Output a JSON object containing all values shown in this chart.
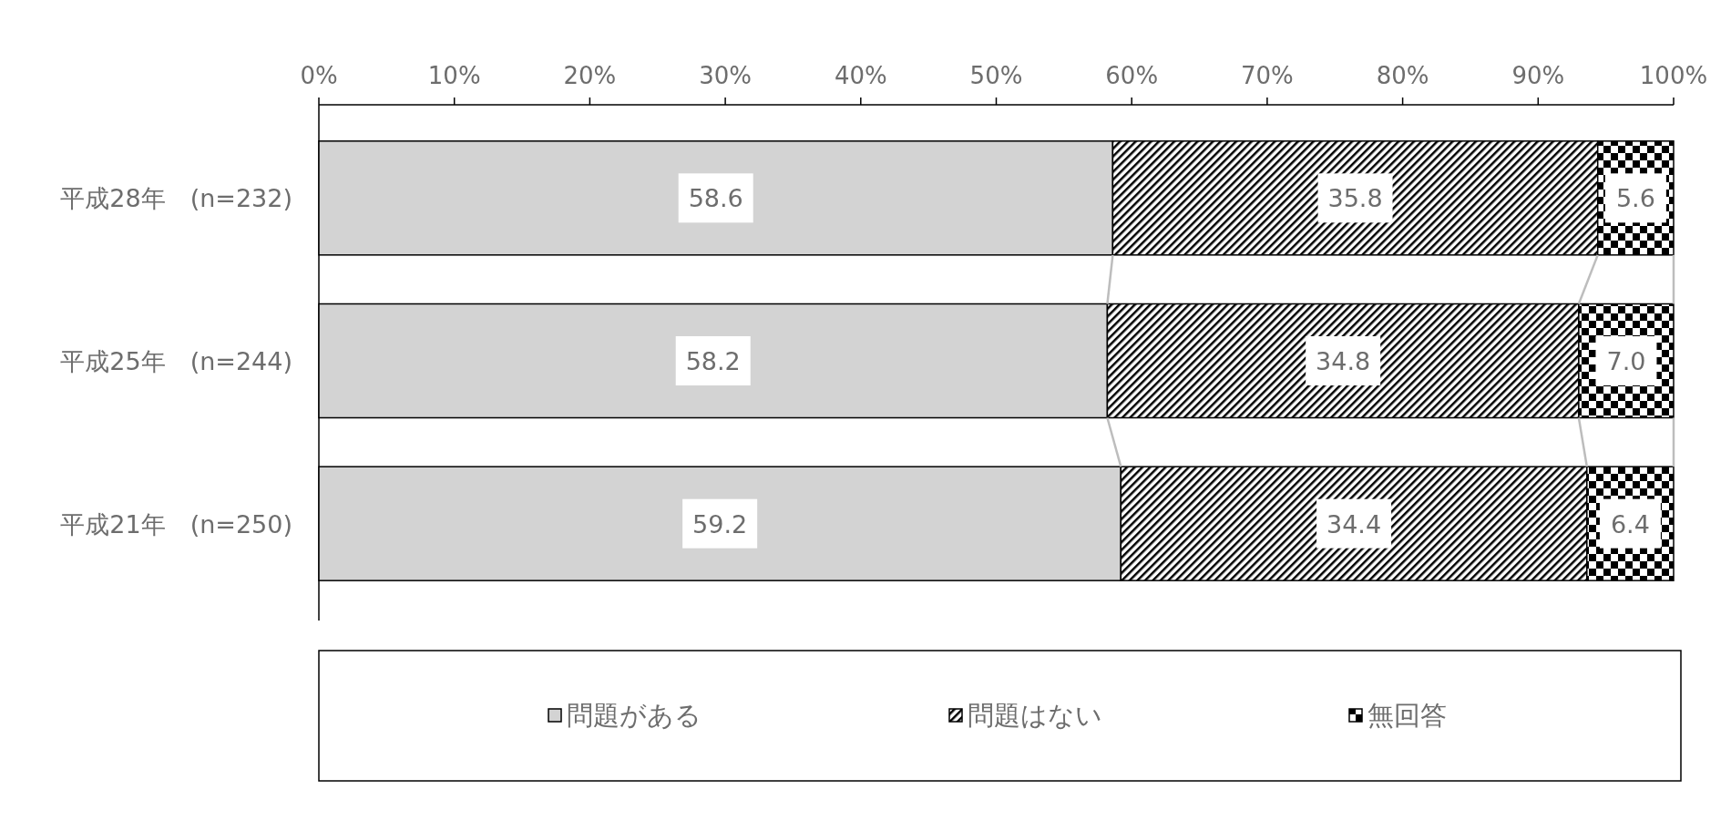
{
  "chart_data": {
    "type": "bar",
    "orientation": "horizontal",
    "stacked": true,
    "legend": "bottom",
    "grid": false,
    "categories": [
      "平成28年　(n=232)",
      "平成25年　(n=244)",
      "平成21年　(n=250)"
    ],
    "series": [
      {
        "name": "問題がある",
        "color": "#d3d3d3",
        "values": [
          58.6,
          58.2,
          59.2
        ],
        "value_labels": [
          "58.6",
          "58.2",
          "59.2"
        ]
      },
      {
        "name": "問題はない",
        "color": "#000000",
        "values": [
          35.8,
          34.8,
          34.4
        ],
        "value_labels": [
          "35.8",
          "34.8",
          "34.4"
        ]
      },
      {
        "name": "無回答",
        "color": "#000000",
        "values": [
          5.6,
          7.0,
          6.4
        ],
        "value_labels": [
          "5.6",
          "7.0",
          "6.4"
        ]
      }
    ],
    "xlim": [
      0,
      100
    ],
    "xticks": [
      {
        "value": 0,
        "label": "0%"
      },
      {
        "value": 10,
        "label": "10%"
      },
      {
        "value": 20,
        "label": "20%"
      },
      {
        "value": 30,
        "label": "30%"
      },
      {
        "value": 40,
        "label": "40%"
      },
      {
        "value": 50,
        "label": "50%"
      },
      {
        "value": 60,
        "label": "60%"
      },
      {
        "value": 70,
        "label": "70%"
      },
      {
        "value": 80,
        "label": "80%"
      },
      {
        "value": 90,
        "label": "90%"
      },
      {
        "value": 100,
        "label": "100%"
      }
    ]
  }
}
